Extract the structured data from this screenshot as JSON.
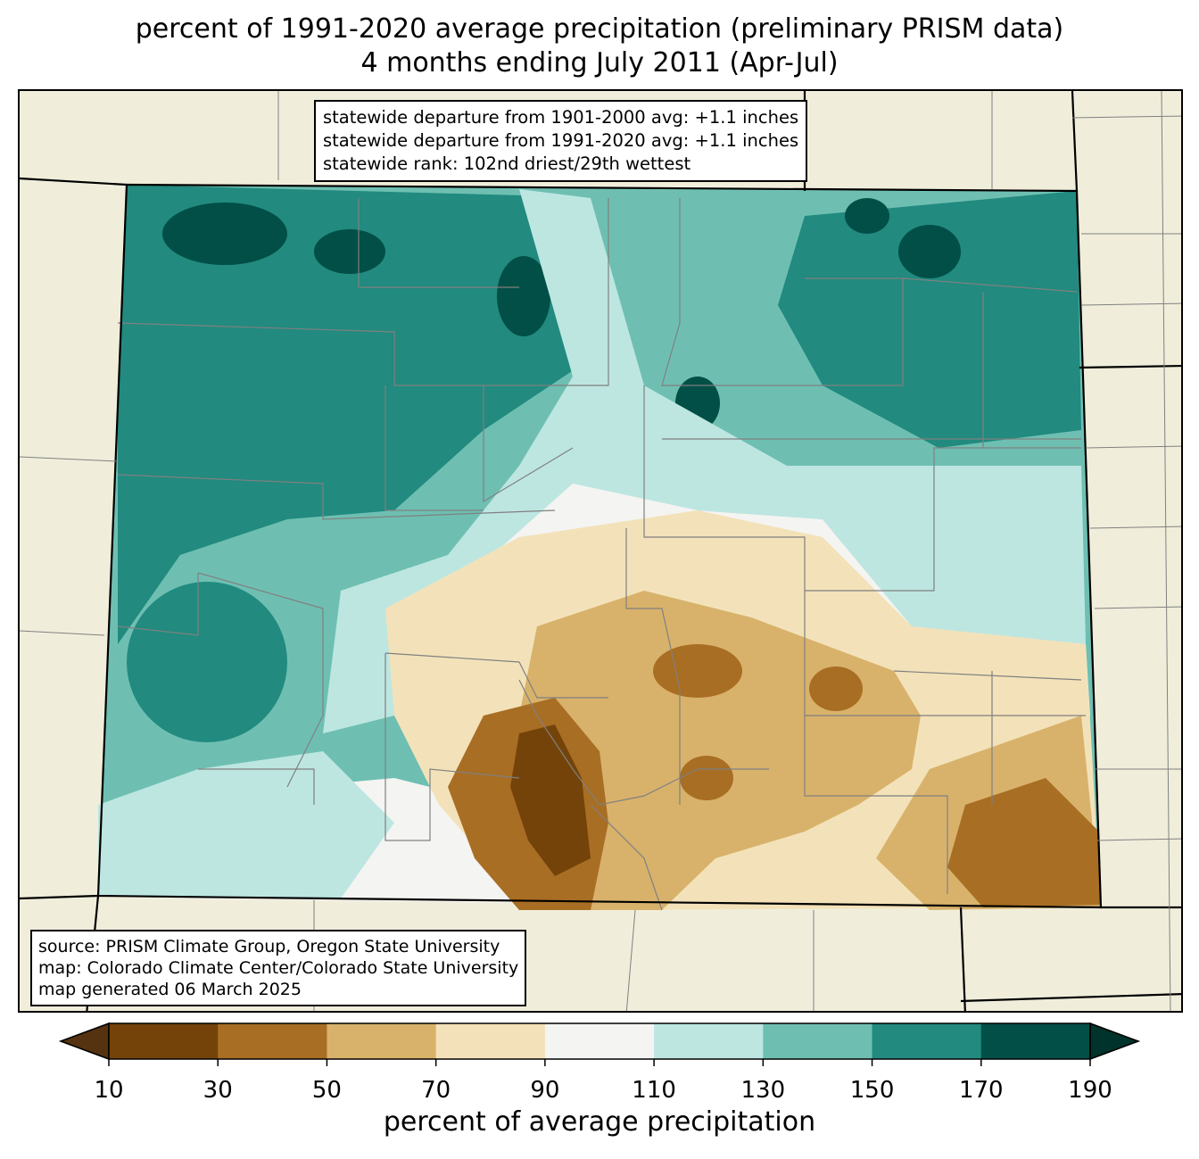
{
  "title": {
    "line1": "percent of 1991-2020 average precipitation (preliminary PRISM data)",
    "line2": "4 months ending July 2011 (Apr-Jul)"
  },
  "stats_box": {
    "line1": "statewide departure from 1901-2000 avg: +1.1 inches",
    "line2": "statewide departure from 1991-2020 avg: +1.1 inches",
    "line3": "statewide rank: 102nd driest/29th wettest"
  },
  "source_box": {
    "line1": "source: PRISM Climate Group, Oregon State University",
    "line2": "map: Colorado Climate Center/Colorado State University",
    "line3": "map generated 06 March 2025"
  },
  "colorbar": {
    "label": "percent of average precipitation",
    "ticks": [
      "10",
      "30",
      "50",
      "70",
      "90",
      "110",
      "130",
      "150",
      "170",
      "190"
    ],
    "bins": [
      {
        "range": "10-30",
        "color": "#74430a"
      },
      {
        "range": "30-50",
        "color": "#a86e24"
      },
      {
        "range": "50-70",
        "color": "#d8b26b"
      },
      {
        "range": "70-90",
        "color": "#f3e2b9"
      },
      {
        "range": "90-110",
        "color": "#f4f4f2"
      },
      {
        "range": "110-130",
        "color": "#bde6e1"
      },
      {
        "range": "130-150",
        "color": "#6ebfb2"
      },
      {
        "range": "150-170",
        "color": "#228a7f"
      },
      {
        "range": "170-190",
        "color": "#014f46"
      }
    ],
    "under_color": "#553310",
    "over_color": "#00332b"
  },
  "map": {
    "background_color": "#f0eedb",
    "region": "Colorado"
  }
}
